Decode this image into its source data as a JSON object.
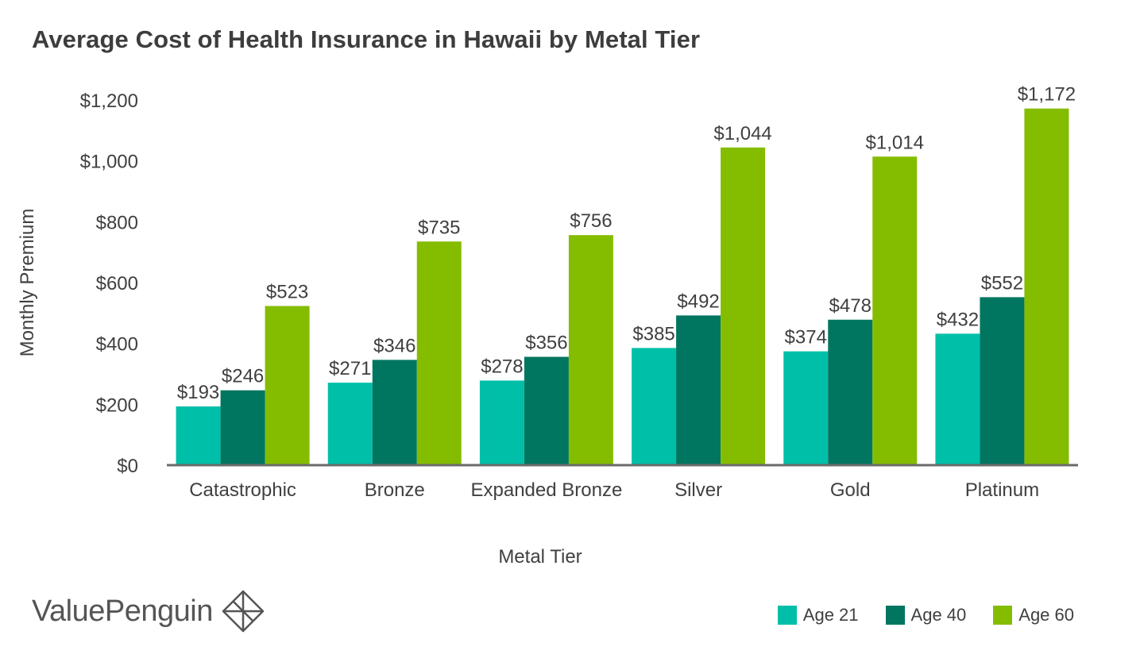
{
  "title": "Average Cost of Health Insurance in Hawaii by Metal Tier",
  "brand": "ValuePenguin",
  "chart_data": {
    "type": "bar",
    "title": "Average Cost of Health Insurance in Hawaii by Metal Tier",
    "xlabel": "Metal Tier",
    "ylabel": "Monthly Premium",
    "ylim": [
      0,
      1200
    ],
    "yticks": [
      "$0",
      "$200",
      "$400",
      "$600",
      "$800",
      "$1,000",
      "$1,200"
    ],
    "ytick_values": [
      0,
      200,
      400,
      600,
      800,
      1000,
      1200
    ],
    "categories": [
      "Catastrophic",
      "Bronze",
      "Expanded Bronze",
      "Silver",
      "Gold",
      "Platinum"
    ],
    "series": [
      {
        "name": "Age 21",
        "color": "#00bfa8",
        "values": [
          193,
          271,
          278,
          385,
          374,
          432
        ],
        "labels": [
          "$193",
          "$271",
          "$278",
          "$385",
          "$374",
          "$432"
        ]
      },
      {
        "name": "Age 40",
        "color": "#007660",
        "values": [
          246,
          346,
          356,
          492,
          478,
          552
        ],
        "labels": [
          "$246",
          "$346",
          "$356",
          "$492",
          "$478",
          "$552"
        ]
      },
      {
        "name": "Age 60",
        "color": "#84bc00",
        "values": [
          523,
          735,
          756,
          1044,
          1014,
          1172
        ],
        "labels": [
          "$523",
          "$735",
          "$756",
          "$1,044",
          "$1,014",
          "$1,172"
        ]
      }
    ],
    "grid": false,
    "legend_position": "bottom-right"
  }
}
